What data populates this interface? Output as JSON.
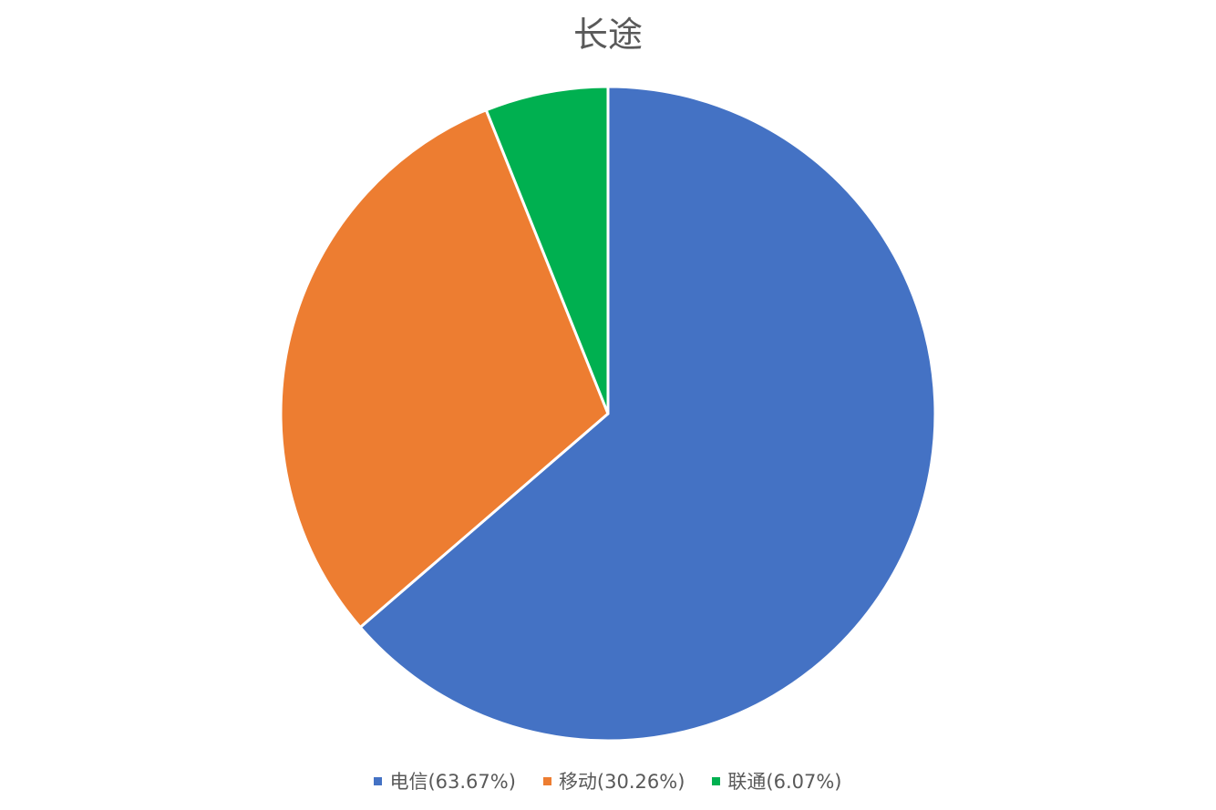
{
  "chart_data": {
    "type": "pie",
    "title": "长途",
    "categories": [
      "电信",
      "移动",
      "联通"
    ],
    "values": [
      63.67,
      30.26,
      6.07
    ],
    "legend_labels": [
      "电信(63.67%)",
      "移动(30.26%)",
      "联通(6.07%)"
    ],
    "colors": [
      "#4472C4",
      "#ED7D31",
      "#00B050"
    ],
    "legend_position": "bottom",
    "start_angle": "12 o'clock",
    "direction": "clockwise"
  }
}
